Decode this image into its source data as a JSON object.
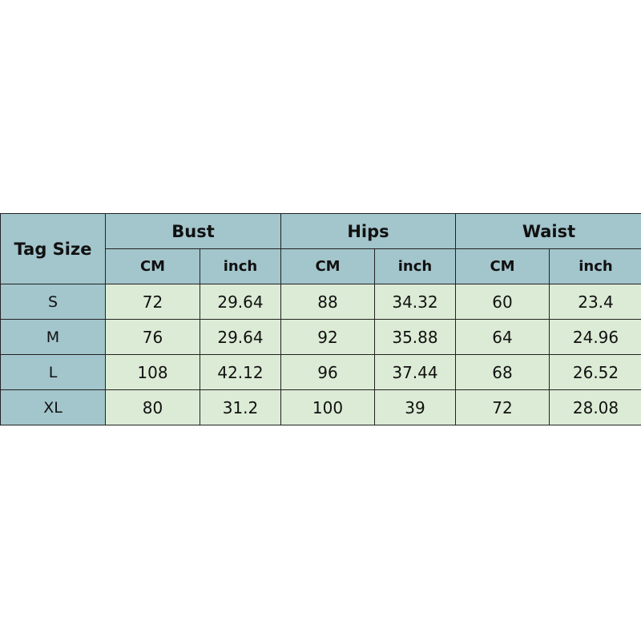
{
  "header": {
    "tag_size": "Tag Size",
    "groups": [
      "Bust",
      "Hips",
      "Waist"
    ],
    "units": [
      "CM",
      "inch",
      "CM",
      "inch",
      "CM",
      "inch"
    ]
  },
  "rows": [
    {
      "size": "S",
      "values": [
        "72",
        "29.64",
        "88",
        "34.32",
        "60",
        "23.4"
      ]
    },
    {
      "size": "M",
      "values": [
        "76",
        "29.64",
        "92",
        "35.88",
        "64",
        "24.96"
      ]
    },
    {
      "size": "L",
      "values": [
        "108",
        "42.12",
        "96",
        "37.44",
        "68",
        "26.52"
      ]
    },
    {
      "size": "XL",
      "values": [
        "80",
        "31.2",
        "100",
        "39",
        "72",
        "28.08"
      ]
    }
  ],
  "colors": {
    "header_bg": "#a3c5cc",
    "cell_bg": "#dcebd5"
  }
}
